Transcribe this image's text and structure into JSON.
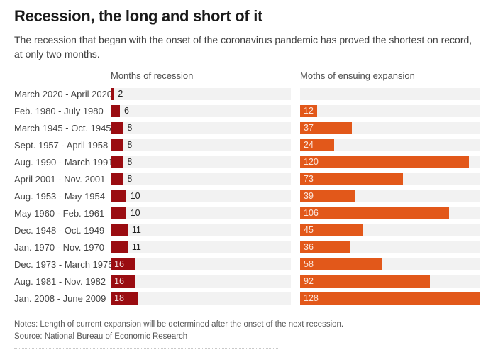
{
  "page": {
    "title": "Recession, the long and short of it",
    "subtitle": "The recession that began with the onset of the coronavirus pandemic has proved the shortest on record, at only two months.",
    "notes": "Notes: Length of current expansion will be determined after the onset of the next recession.",
    "source": "Source: National Bureau of Economic Research"
  },
  "chart_data": {
    "type": "bar",
    "orientation": "horizontal",
    "title": "Recession, the long and short of it",
    "column_headers": [
      "Months of recession",
      "Moths of ensuing expansion"
    ],
    "categories": [
      "March 2020 - April 2020",
      "Feb. 1980 - July 1980",
      "March 1945 - Oct. 1945",
      "Sept. 1957 - April 1958",
      "Aug. 1990 - March 1991",
      "April 2001 - Nov. 2001",
      "Aug. 1953 - May 1954",
      "May 1960 - Feb. 1961",
      "Dec. 1948 - Oct. 1949",
      "Jan. 1970 - Nov. 1970",
      "Dec. 1973 - March 1975",
      "Aug. 1981 - Nov. 1982",
      "Jan. 2008 - June 2009"
    ],
    "series": [
      {
        "name": "Months of recession",
        "color": "#9a0c11",
        "axis_max": 117,
        "values": [
          2,
          6,
          8,
          8,
          8,
          8,
          10,
          10,
          11,
          11,
          16,
          16,
          18
        ]
      },
      {
        "name": "Moths of ensuing expansion",
        "color": "#e2581a",
        "axis_max": 128,
        "values": [
          null,
          12,
          37,
          24,
          120,
          73,
          39,
          106,
          45,
          36,
          58,
          92,
          128
        ]
      }
    ],
    "track_color": "#f2f2f2",
    "grid": false,
    "legend_position": "column-headers",
    "value_labels": "shown-on-bars"
  }
}
